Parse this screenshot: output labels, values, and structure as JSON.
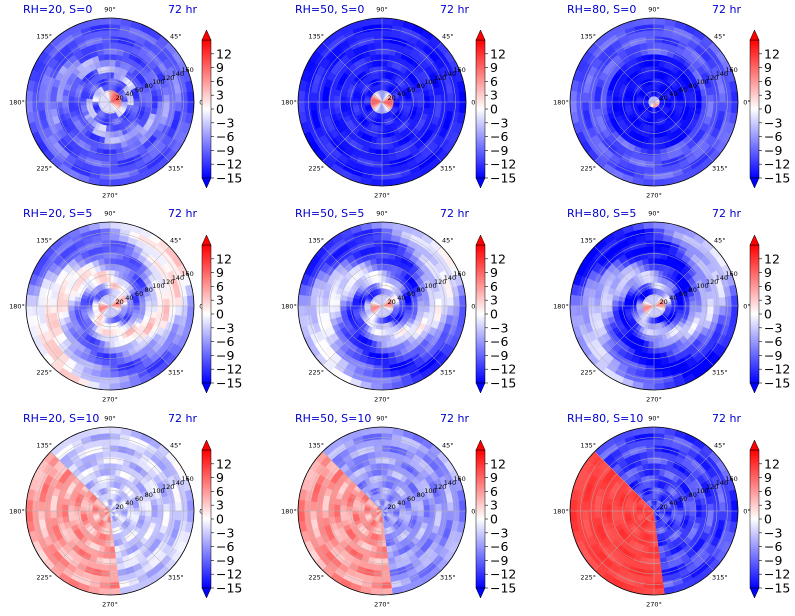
{
  "chart_data": {
    "type": "heatmap",
    "projection": "polar",
    "layout": "3x3 grid",
    "colormap": "bwr",
    "shared_colorbar": {
      "ticks": [
        12,
        9,
        6,
        3,
        0,
        -3,
        -6,
        -9,
        -12,
        -15
      ],
      "range": [
        -15,
        15
      ],
      "extend": "both"
    },
    "angle_ticks": [
      "0°",
      "45°",
      "90°",
      "135°",
      "180°",
      "225°",
      "270°",
      "315°"
    ],
    "radial_ticks": [
      "20",
      "40",
      "60",
      "80",
      "100",
      "120",
      "140",
      "160"
    ],
    "panels": [
      {
        "title": "RH=20, S=0",
        "time": "72 hr",
        "pattern": "compact_spiral",
        "background": -10,
        "core_sign": "positive"
      },
      {
        "title": "RH=50, S=0",
        "time": "72 hr",
        "pattern": "compact_core",
        "background": -13,
        "core_sign": "positive"
      },
      {
        "title": "RH=80, S=0",
        "time": "72 hr",
        "pattern": "tight_core",
        "background": -14,
        "core_sign": "positive"
      },
      {
        "title": "RH=20, S=5",
        "time": "72 hr",
        "pattern": "spiral_bands",
        "background": -4,
        "core_sign": "positive"
      },
      {
        "title": "RH=50, S=5",
        "time": "72 hr",
        "pattern": "spiral_bands",
        "background": -7,
        "core_sign": "positive"
      },
      {
        "title": "RH=80, S=5",
        "time": "72 hr",
        "pattern": "spiral_bands",
        "background": -9,
        "core_sign": "positive"
      },
      {
        "title": "RH=20, S=10",
        "time": "72 hr",
        "pattern": "half_split",
        "background": -3,
        "core_sign": "positive"
      },
      {
        "title": "RH=50, S=10",
        "time": "72 hr",
        "pattern": "half_split",
        "background": -6,
        "core_sign": "positive"
      },
      {
        "title": "RH=80, S=10",
        "time": "72 hr",
        "pattern": "half_split",
        "background": -11,
        "core_sign": "positive"
      }
    ]
  }
}
